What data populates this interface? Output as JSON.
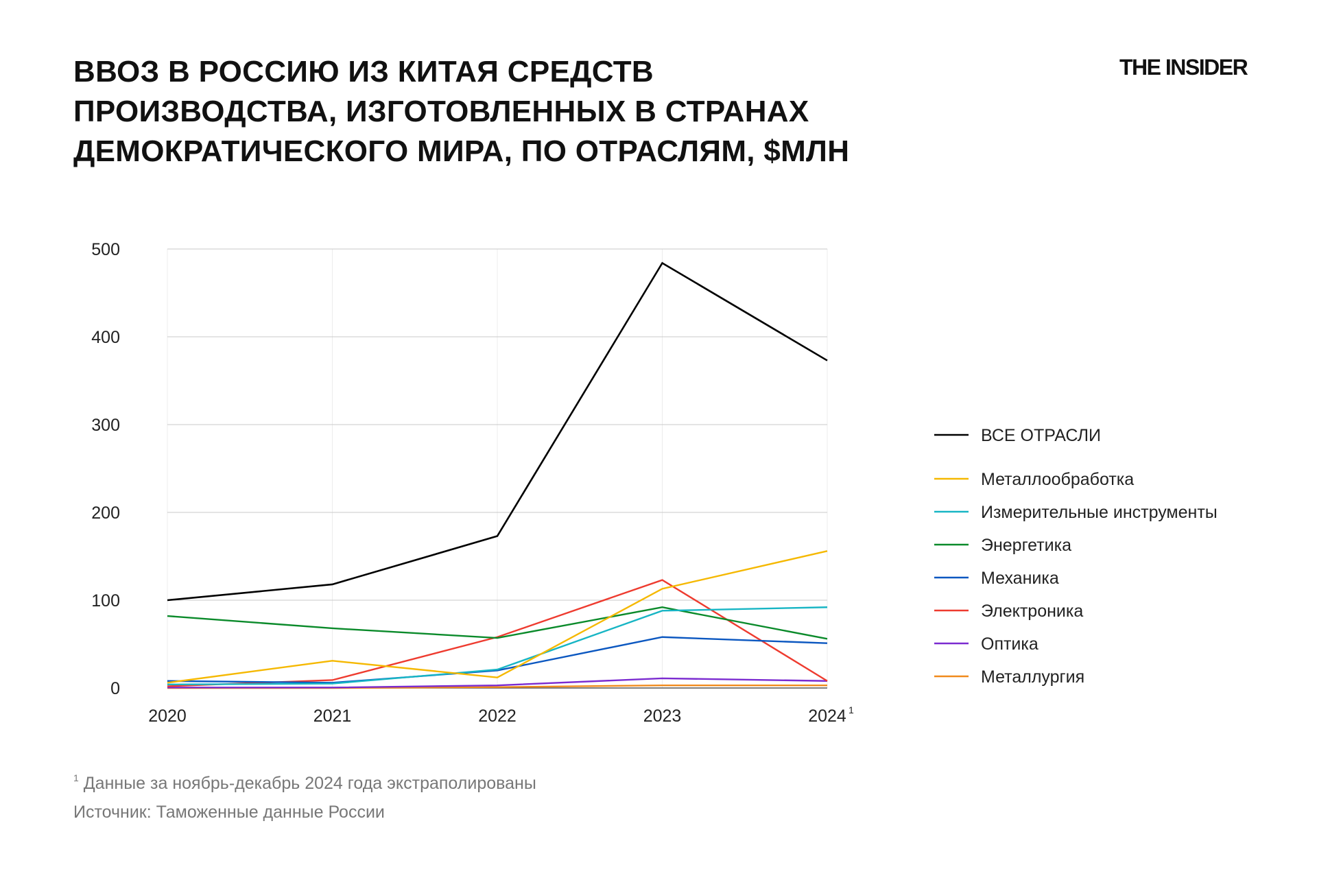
{
  "title_lines": [
    "ВВОЗ В РОССИЮ ИЗ КИТАЯ СРЕДСТВ",
    "ПРОИЗВОДСТВА, ИЗГОТОВЛЕННЫХ В СТРАНАХ",
    "ДЕМОКРАТИЧЕСКОГО МИРА, ПО ОТРАСЛЯМ, $МЛН"
  ],
  "logo": "THE INSIDER",
  "footnote_marker": "1",
  "footnote": "Данные за ноябрь-декабрь 2024 года экстраполированы",
  "source": "Источник: Таможенные данные России",
  "chart_data": {
    "type": "line",
    "title": "ВВОЗ В РОССИЮ ИЗ КИТАЯ СРЕДСТВ ПРОИЗВОДСТВА, ИЗГОТОВЛЕННЫХ В СТРАНАХ ДЕМОКРАТИЧЕСКОГО МИРА, ПО ОТРАСЛЯМ, $МЛН",
    "categories": [
      "2020",
      "2021",
      "2022",
      "2023",
      "2024"
    ],
    "category_superscripts": [
      "",
      "",
      "",
      "",
      "1"
    ],
    "ylim": [
      0,
      500
    ],
    "yticks": [
      "0",
      "100",
      "200",
      "300",
      "400",
      "500"
    ],
    "grid": true,
    "legend_position": "right",
    "series": [
      {
        "name": "ВСЕ ОТРАСЛИ",
        "color": "#000000",
        "values": [
          100,
          118,
          173,
          484,
          373
        ]
      },
      {
        "name": "Металлообработка",
        "color": "#f5b800",
        "values": [
          6,
          31,
          12,
          113,
          156
        ]
      },
      {
        "name": "Измерительные инструменты",
        "color": "#17b5c4",
        "values": [
          4,
          5,
          21,
          88,
          92
        ]
      },
      {
        "name": "Энергетика",
        "color": "#0a8a2a",
        "values": [
          82,
          68,
          57,
          92,
          56
        ]
      },
      {
        "name": "Механика",
        "color": "#0b57c0",
        "values": [
          8,
          6,
          20,
          58,
          51
        ]
      },
      {
        "name": "Электроника",
        "color": "#ee3b2f",
        "values": [
          2,
          9,
          58,
          123,
          8
        ]
      },
      {
        "name": "Оптика",
        "color": "#7b2bd0",
        "values": [
          0.5,
          0.5,
          3,
          11,
          8
        ]
      },
      {
        "name": "Металлургия",
        "color": "#f08a1c",
        "values": [
          0,
          0,
          1,
          3,
          3
        ]
      }
    ]
  }
}
